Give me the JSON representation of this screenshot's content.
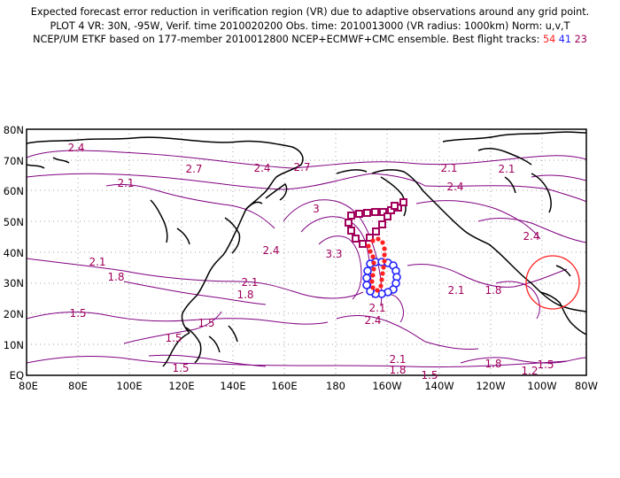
{
  "header": {
    "line1": "Expected forecast error reduction in verification region (VR) due to adaptive observations around any grid point.",
    "line2": "PLOT 4 VR: 30N, -95W, Verif. time 2010020200 Obs. time: 2010013000 (VR radius: 1000km) Norm: u,v,T",
    "line3_prefix": "NCEP/UM ETKF based on 177-member 2010012800 NCEP+ECMWF+CMC ensemble. Best flight tracks:",
    "track_red": "54",
    "track_blue": "41",
    "track_purple": "23"
  },
  "map": {
    "lat_labels": [
      "80N",
      "70N",
      "60N",
      "50N",
      "40N",
      "30N",
      "20N",
      "10N",
      "EQ"
    ],
    "lon_labels": [
      "80E",
      "80E",
      "100E",
      "120E",
      "140E",
      "160E",
      "180",
      "160W",
      "140W",
      "120W",
      "100W",
      "80W"
    ],
    "contour_labels": [
      "2.4",
      "2.7",
      "2.4",
      "2.7",
      "2.1",
      "2.1",
      "2.1",
      "2.4",
      "3",
      "2.4",
      "3.3",
      "2.1",
      "1.8",
      "2.1",
      "1.8",
      "2.1",
      "1.8",
      "1.5",
      "1.5",
      "1.5",
      "1.5",
      "2.4",
      "2.1",
      "2.1",
      "1.8",
      "1.5",
      "1.8",
      "1.5",
      "1.2"
    ],
    "colors": {
      "contour": "#800080",
      "coast": "#000000",
      "grid": "#a0a0a0",
      "label": "#a0005a",
      "track_red": "#ff2020",
      "track_blue": "#2020ff",
      "track_purple": "#a0005a",
      "vr_circle": "#ff2020"
    },
    "verification_region": {
      "lat": 30,
      "lon": -95,
      "radius_km": 1000
    }
  }
}
